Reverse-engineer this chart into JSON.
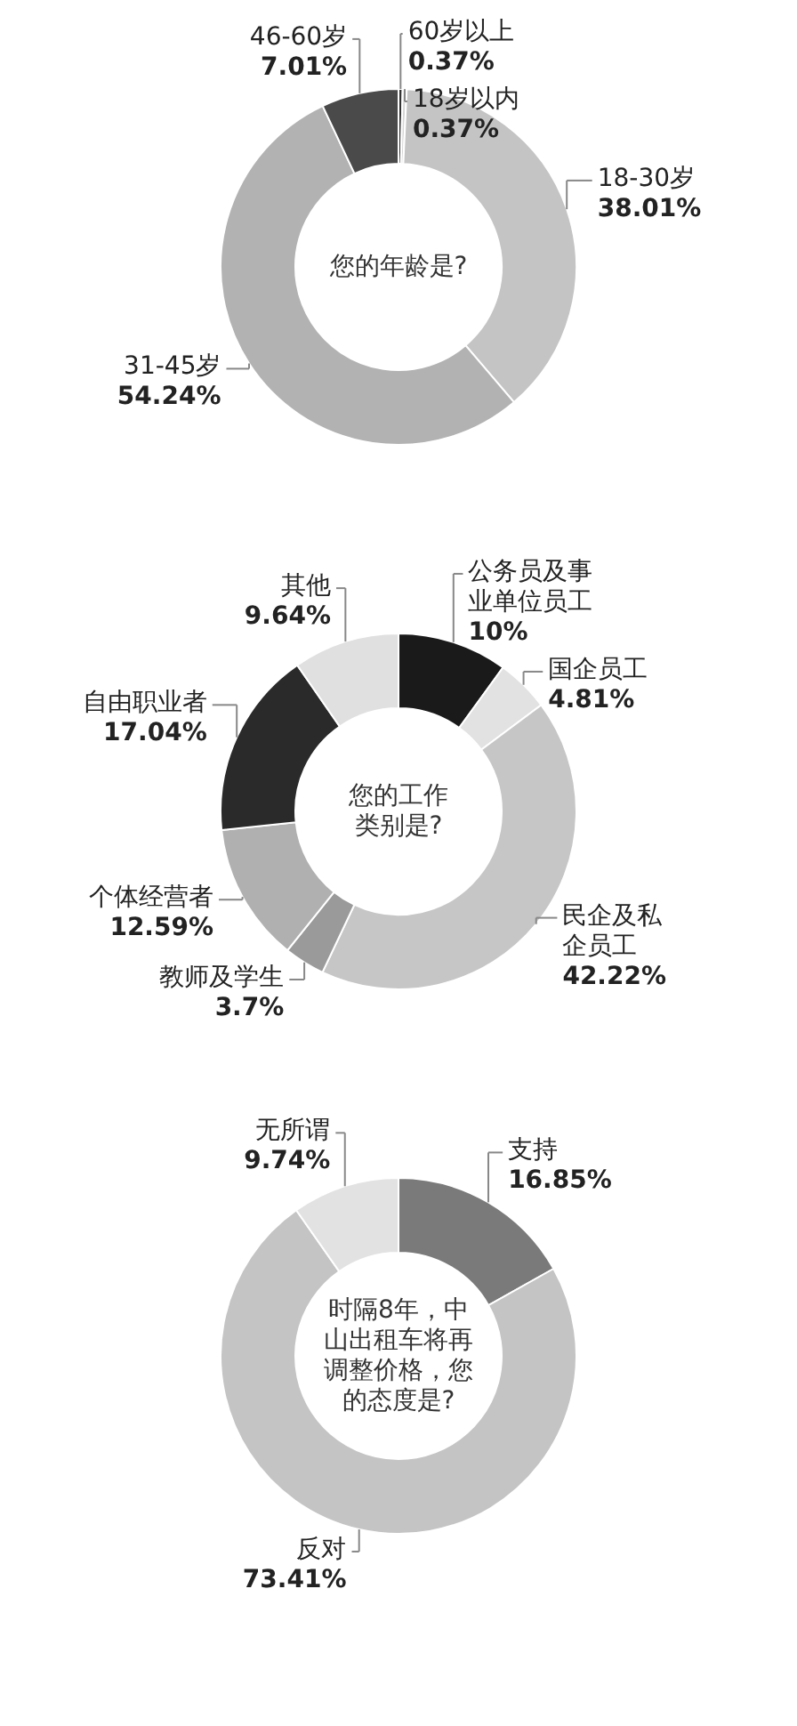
{
  "chart_data": [
    {
      "type": "donut",
      "title": "您的年龄是?",
      "categories": [
        "60岁以上",
        "18岁以内",
        "18-30岁",
        "31-45岁",
        "46-60岁"
      ],
      "values": [
        0.37,
        0.37,
        38.01,
        54.24,
        7.01
      ],
      "colors": [
        "#333333",
        "#d6d6d6",
        "#c4c4c4",
        "#b2b2b2",
        "#4a4a4a"
      ],
      "value_labels": [
        "0.37%",
        "0.37%",
        "38.01%",
        "54.24%",
        "7.01%"
      ],
      "legend": false
    },
    {
      "type": "donut",
      "title": "您的工作类别是?",
      "categories": [
        "公务员及事业单位员工",
        "国企员工",
        "民企及私企员工",
        "教师及学生",
        "个体经营者",
        "自由职业者",
        "其他"
      ],
      "values": [
        10,
        4.81,
        42.22,
        3.7,
        12.59,
        17.04,
        9.64
      ],
      "colors": [
        "#1a1a1a",
        "#e2e2e2",
        "#c6c6c6",
        "#9a9a9a",
        "#b0b0b0",
        "#2a2a2a",
        "#e0e0e0"
      ],
      "value_labels": [
        "10%",
        "4.81%",
        "42.22%",
        "3.7%",
        "12.59%",
        "17.04%",
        "9.64%"
      ],
      "legend": false
    },
    {
      "type": "donut",
      "title": "时隔8年，中山出租车将再调整价格，您的态度是?",
      "categories": [
        "支持",
        "反对",
        "无所谓"
      ],
      "values": [
        16.85,
        73.41,
        9.74
      ],
      "colors": [
        "#7a7a7a",
        "#c4c4c4",
        "#e2e2e2"
      ],
      "value_labels": [
        "16.85%",
        "73.41%",
        "9.74%"
      ],
      "legend": false
    }
  ]
}
